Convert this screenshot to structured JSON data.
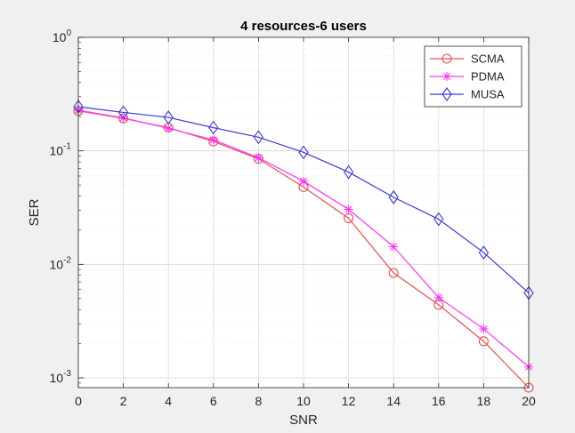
{
  "chart_data": {
    "type": "line",
    "title": "4 resources-6 users",
    "xlabel": "SNR",
    "ylabel": "SER",
    "xlim": [
      0,
      20
    ],
    "ylim": [
      0.00082,
      1
    ],
    "yscale": "log",
    "grid": "on, with minor grid",
    "legend_position": "top-right",
    "x_ticks": [
      "0",
      "2",
      "4",
      "6",
      "8",
      "10",
      "12",
      "14",
      "16",
      "18",
      "20"
    ],
    "y_ticks": [
      {
        "value": 1,
        "base": "10",
        "exp": "0"
      },
      {
        "value": 0.1,
        "base": "10",
        "exp": "-1"
      },
      {
        "value": 0.01,
        "base": "10",
        "exp": "-2"
      },
      {
        "value": 0.001,
        "base": "10",
        "exp": "-3"
      }
    ],
    "x": [
      0,
      2,
      4,
      6,
      8,
      10,
      12,
      14,
      16,
      18,
      20
    ],
    "series": [
      {
        "name": "SCMA",
        "color": "#e8504f",
        "marker": "circle",
        "values": [
          0.225,
          0.193,
          0.16,
          0.121,
          0.085,
          0.048,
          0.0255,
          0.0084,
          0.0044,
          0.0021,
          0.00082
        ]
      },
      {
        "name": "PDMA",
        "color": "#ff33ff",
        "marker": "asterisk",
        "values": [
          0.228,
          0.195,
          0.158,
          0.125,
          0.087,
          0.054,
          0.0305,
          0.0143,
          0.0051,
          0.0027,
          0.00125
        ]
      },
      {
        "name": "MUSA",
        "color": "#3a3ad8",
        "marker": "diamond",
        "values": [
          0.245,
          0.218,
          0.197,
          0.16,
          0.132,
          0.097,
          0.065,
          0.039,
          0.025,
          0.0127,
          0.0056
        ]
      }
    ]
  }
}
